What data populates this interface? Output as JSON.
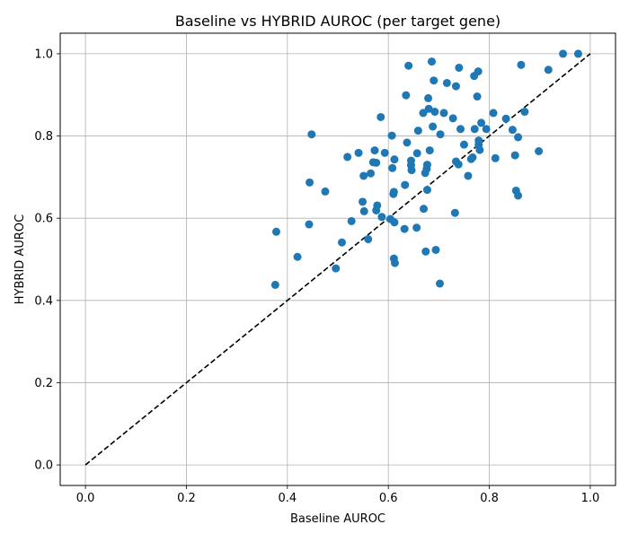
{
  "chart_data": {
    "type": "scatter",
    "title": "Baseline vs HYBRID AUROC (per target gene)",
    "xlabel": "Baseline AUROC",
    "ylabel": "HYBRID AUROC",
    "xlim": [
      -0.05,
      1.05
    ],
    "ylim": [
      -0.05,
      1.05
    ],
    "xticks": [
      0.0,
      0.2,
      0.4,
      0.6,
      0.8,
      1.0
    ],
    "yticks": [
      0.0,
      0.2,
      0.4,
      0.6,
      0.8,
      1.0
    ],
    "xtick_labels": [
      "0.0",
      "0.2",
      "0.4",
      "0.6",
      "0.8",
      "1.0"
    ],
    "ytick_labels": [
      "0.0",
      "0.2",
      "0.4",
      "0.6",
      "0.8",
      "1.0"
    ],
    "grid": true,
    "reference_line": {
      "from": [
        0,
        0
      ],
      "to": [
        1,
        1
      ],
      "style": "dashed",
      "color": "#000000"
    },
    "marker_color": "#1f77b4",
    "points": [
      [
        0.378,
        0.567
      ],
      [
        0.376,
        0.438
      ],
      [
        0.42,
        0.506
      ],
      [
        0.443,
        0.585
      ],
      [
        0.444,
        0.687
      ],
      [
        0.448,
        0.804
      ],
      [
        0.475,
        0.665
      ],
      [
        0.496,
        0.478
      ],
      [
        0.508,
        0.541
      ],
      [
        0.519,
        0.749
      ],
      [
        0.527,
        0.593
      ],
      [
        0.541,
        0.759
      ],
      [
        0.549,
        0.64
      ],
      [
        0.551,
        0.703
      ],
      [
        0.552,
        0.617
      ],
      [
        0.56,
        0.549
      ],
      [
        0.565,
        0.709
      ],
      [
        0.57,
        0.736
      ],
      [
        0.573,
        0.765
      ],
      [
        0.576,
        0.735
      ],
      [
        0.576,
        0.619
      ],
      [
        0.578,
        0.631
      ],
      [
        0.585,
        0.846
      ],
      [
        0.587,
        0.603
      ],
      [
        0.593,
        0.759
      ],
      [
        0.604,
        0.598
      ],
      [
        0.607,
        0.801
      ],
      [
        0.608,
        0.722
      ],
      [
        0.61,
        0.659
      ],
      [
        0.611,
        0.664
      ],
      [
        0.611,
        0.502
      ],
      [
        0.612,
        0.743
      ],
      [
        0.612,
        0.59
      ],
      [
        0.613,
        0.491
      ],
      [
        0.632,
        0.574
      ],
      [
        0.633,
        0.681
      ],
      [
        0.635,
        0.899
      ],
      [
        0.637,
        0.784
      ],
      [
        0.64,
        0.971
      ],
      [
        0.645,
        0.729
      ],
      [
        0.645,
        0.74
      ],
      [
        0.646,
        0.717
      ],
      [
        0.656,
        0.577
      ],
      [
        0.657,
        0.758
      ],
      [
        0.659,
        0.813
      ],
      [
        0.669,
        0.856
      ],
      [
        0.67,
        0.623
      ],
      [
        0.673,
        0.71
      ],
      [
        0.674,
        0.519
      ],
      [
        0.676,
        0.72
      ],
      [
        0.677,
        0.73
      ],
      [
        0.677,
        0.669
      ],
      [
        0.679,
        0.892
      ],
      [
        0.68,
        0.866
      ],
      [
        0.682,
        0.765
      ],
      [
        0.686,
        0.981
      ],
      [
        0.688,
        0.823
      ],
      [
        0.69,
        0.935
      ],
      [
        0.692,
        0.859
      ],
      [
        0.694,
        0.523
      ],
      [
        0.702,
        0.441
      ],
      [
        0.703,
        0.804
      ],
      [
        0.71,
        0.856
      ],
      [
        0.716,
        0.929
      ],
      [
        0.728,
        0.843
      ],
      [
        0.732,
        0.613
      ],
      [
        0.734,
        0.921
      ],
      [
        0.734,
        0.738
      ],
      [
        0.739,
        0.731
      ],
      [
        0.74,
        0.966
      ],
      [
        0.743,
        0.817
      ],
      [
        0.75,
        0.779
      ],
      [
        0.758,
        0.703
      ],
      [
        0.764,
        0.744
      ],
      [
        0.767,
        0.748
      ],
      [
        0.77,
        0.946
      ],
      [
        0.771,
        0.817
      ],
      [
        0.776,
        0.896
      ],
      [
        0.778,
        0.957
      ],
      [
        0.779,
        0.779
      ],
      [
        0.779,
        0.789
      ],
      [
        0.781,
        0.766
      ],
      [
        0.784,
        0.832
      ],
      [
        0.794,
        0.817
      ],
      [
        0.808,
        0.856
      ],
      [
        0.812,
        0.746
      ],
      [
        0.833,
        0.842
      ],
      [
        0.846,
        0.815
      ],
      [
        0.851,
        0.753
      ],
      [
        0.853,
        0.667
      ],
      [
        0.857,
        0.797
      ],
      [
        0.857,
        0.655
      ],
      [
        0.863,
        0.973
      ],
      [
        0.87,
        0.859
      ],
      [
        0.898,
        0.763
      ],
      [
        0.917,
        0.961
      ],
      [
        0.946,
        1.0
      ],
      [
        0.976,
        1.0
      ]
    ]
  }
}
